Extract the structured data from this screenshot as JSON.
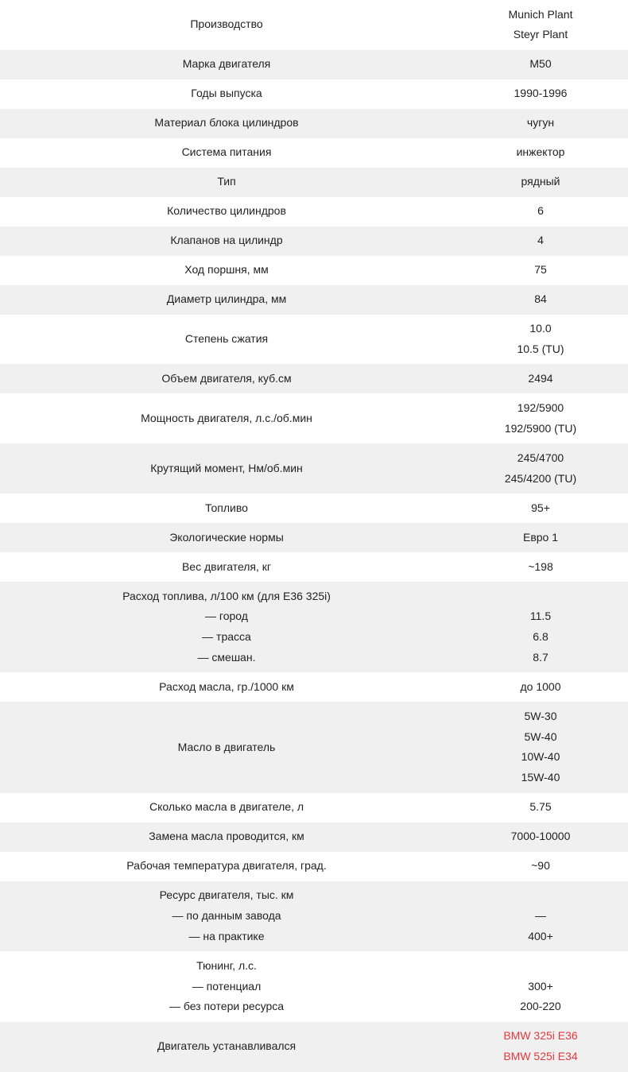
{
  "rows": [
    {
      "label": [
        "Производство"
      ],
      "value": [
        "Munich Plant",
        "Steyr Plant"
      ]
    },
    {
      "label": [
        "Марка двигателя"
      ],
      "value": [
        "M50"
      ]
    },
    {
      "label": [
        "Годы выпуска"
      ],
      "value": [
        "1990-1996"
      ]
    },
    {
      "label": [
        "Материал блока цилиндров"
      ],
      "value": [
        "чугун"
      ]
    },
    {
      "label": [
        "Система питания"
      ],
      "value": [
        "инжектор"
      ]
    },
    {
      "label": [
        "Тип"
      ],
      "value": [
        "рядный"
      ]
    },
    {
      "label": [
        "Количество цилиндров"
      ],
      "value": [
        "6"
      ]
    },
    {
      "label": [
        "Клапанов на цилиндр"
      ],
      "value": [
        "4"
      ]
    },
    {
      "label": [
        "Ход поршня, мм"
      ],
      "value": [
        "75"
      ]
    },
    {
      "label": [
        "Диаметр цилиндра, мм"
      ],
      "value": [
        "84"
      ]
    },
    {
      "label": [
        "Степень сжатия"
      ],
      "value": [
        "10.0",
        "10.5 (TU)"
      ]
    },
    {
      "label": [
        "Объем двигателя, куб.см"
      ],
      "value": [
        "2494"
      ]
    },
    {
      "label": [
        "Мощность двигателя, л.с./об.мин"
      ],
      "value": [
        "192/5900",
        "192/5900 (TU)"
      ]
    },
    {
      "label": [
        "Крутящий момент, Нм/об.мин"
      ],
      "value": [
        "245/4700",
        "245/4200 (TU)"
      ]
    },
    {
      "label": [
        "Топливо"
      ],
      "value": [
        "95+"
      ]
    },
    {
      "label": [
        "Экологические нормы"
      ],
      "value": [
        "Евро 1"
      ]
    },
    {
      "label": [
        "Вес двигателя, кг"
      ],
      "value": [
        "~198"
      ]
    },
    {
      "label": [
        "Расход  топлива, л/100 км (для E36 325i)",
        "— город",
        "— трасса",
        "— смешан."
      ],
      "value": [
        "",
        "11.5",
        "6.8",
        "8.7"
      ]
    },
    {
      "label": [
        "Расход масла, гр./1000 км"
      ],
      "value": [
        "до 1000"
      ]
    },
    {
      "label": [
        "Масло в двигатель"
      ],
      "value": [
        "5W-30",
        "5W-40",
        "10W-40",
        "15W-40"
      ]
    },
    {
      "label": [
        "Сколько масла в двигателе, л"
      ],
      "value": [
        "5.75"
      ]
    },
    {
      "label": [
        "Замена масла проводится, км"
      ],
      "value": [
        "7000-10000"
      ]
    },
    {
      "label": [
        "Рабочая температура двигателя, град."
      ],
      "value": [
        "~90"
      ]
    },
    {
      "label": [
        "Ресурс двигателя, тыс. км",
        "— по данным завода",
        "— на практике"
      ],
      "value": [
        "",
        "—",
        "400+"
      ]
    },
    {
      "label": [
        "Тюнинг, л.с.",
        "— потенциал",
        "— без потери ресурса"
      ],
      "value": [
        "",
        "300+",
        "200-220"
      ]
    },
    {
      "label": [
        "Двигатель устанавливался"
      ],
      "value": [
        "BMW 325i E36",
        "BMW 525i E34"
      ],
      "links": true
    }
  ],
  "colors": {
    "row_alt": "#f0f0f0",
    "link": "#e0393e",
    "text": "#222222"
  }
}
